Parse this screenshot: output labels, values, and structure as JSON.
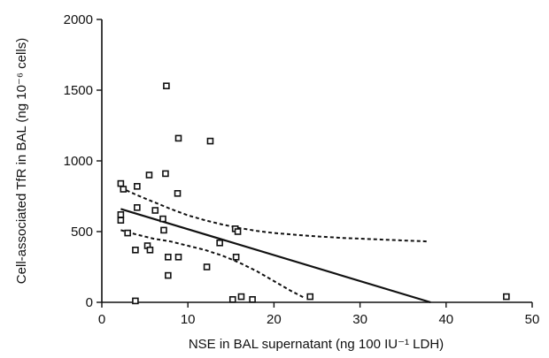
{
  "chart_data": {
    "type": "scatter",
    "xlabel": "NSE in BAL supernatant (ng 100 IU⁻¹ LDH)",
    "ylabel": "Cell-associated TfR in BAL (ng 10⁻⁶ cells)",
    "xlim": [
      0,
      50
    ],
    "ylim": [
      0,
      2000
    ],
    "x_ticks": [
      0,
      10,
      20,
      30,
      40,
      50
    ],
    "y_ticks": [
      0,
      500,
      1000,
      1500,
      2000
    ],
    "x_tick_labels": [
      "0",
      "10",
      "20",
      "30",
      "40",
      "50"
    ],
    "y_tick_labels": [
      "0",
      "500",
      "1000",
      "1500",
      "2000"
    ],
    "grid": false,
    "marker": "open-square",
    "points": [
      {
        "x": 2.2,
        "y": 840
      },
      {
        "x": 2.5,
        "y": 800
      },
      {
        "x": 2.2,
        "y": 620
      },
      {
        "x": 2.2,
        "y": 580
      },
      {
        "x": 3.0,
        "y": 490
      },
      {
        "x": 3.9,
        "y": 370
      },
      {
        "x": 4.1,
        "y": 820
      },
      {
        "x": 4.1,
        "y": 670
      },
      {
        "x": 3.9,
        "y": 10
      },
      {
        "x": 5.5,
        "y": 900
      },
      {
        "x": 5.3,
        "y": 400
      },
      {
        "x": 5.6,
        "y": 370
      },
      {
        "x": 6.2,
        "y": 650
      },
      {
        "x": 7.1,
        "y": 590
      },
      {
        "x": 7.2,
        "y": 510
      },
      {
        "x": 7.4,
        "y": 910
      },
      {
        "x": 7.5,
        "y": 1530
      },
      {
        "x": 7.7,
        "y": 320
      },
      {
        "x": 7.7,
        "y": 190
      },
      {
        "x": 8.8,
        "y": 770
      },
      {
        "x": 8.9,
        "y": 1160
      },
      {
        "x": 8.9,
        "y": 320
      },
      {
        "x": 12.2,
        "y": 250
      },
      {
        "x": 12.6,
        "y": 1140
      },
      {
        "x": 13.7,
        "y": 420
      },
      {
        "x": 15.2,
        "y": 20
      },
      {
        "x": 15.5,
        "y": 520
      },
      {
        "x": 15.6,
        "y": 320
      },
      {
        "x": 15.8,
        "y": 500
      },
      {
        "x": 16.2,
        "y": 40
      },
      {
        "x": 17.5,
        "y": 20
      },
      {
        "x": 24.2,
        "y": 40
      },
      {
        "x": 47.0,
        "y": 40
      }
    ],
    "regression_line": {
      "x": [
        2.2,
        38.2
      ],
      "y": [
        660,
        0
      ]
    },
    "upper_confidence_band": {
      "x": [
        2.2,
        4,
        6,
        8,
        10,
        12,
        14,
        16,
        18,
        20,
        24,
        28,
        32,
        38
      ],
      "y": [
        810,
        760,
        710,
        660,
        615,
        580,
        550,
        525,
        505,
        490,
        470,
        455,
        445,
        430
      ]
    },
    "lower_confidence_band": {
      "x": [
        2.2,
        4,
        6,
        8,
        10,
        12,
        14,
        16,
        18,
        20,
        22,
        23.6
      ],
      "y": [
        510,
        480,
        450,
        430,
        400,
        370,
        330,
        280,
        220,
        150,
        80,
        30
      ]
    }
  }
}
